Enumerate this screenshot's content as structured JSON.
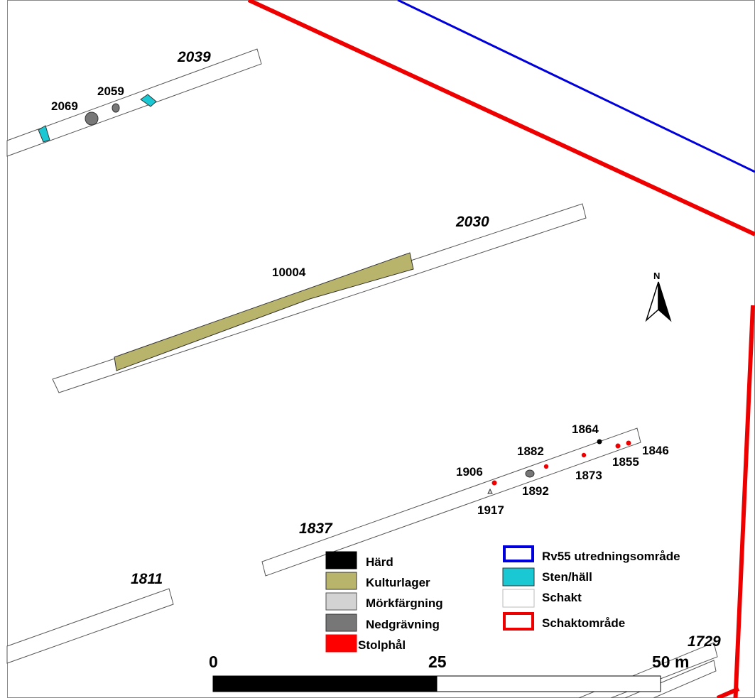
{
  "colors": {
    "hard": "#000000",
    "kulturlager": "#b9b46c",
    "morkfargning": "#d3d3d3",
    "nedgravning": "#777777",
    "stolphal": "#ff0000",
    "utredningsomrade": "#0000dd",
    "sten_hall": "#19c8d2",
    "schakt": "#ffffff",
    "schaktomrade": "#ee0000"
  },
  "trenches": {
    "t2039": "2039",
    "t2030": "2030",
    "t1837": "1837",
    "t1811": "1811",
    "t1729": "1729"
  },
  "features": {
    "f2069": "2069",
    "f2059": "2059",
    "f10004": "10004",
    "f1864": "1864",
    "f1882": "1882",
    "f1846": "1846",
    "f1855": "1855",
    "f1873": "1873",
    "f1906": "1906",
    "f1892": "1892",
    "f1917": "1917"
  },
  "north_arrow": {
    "label": "N",
    "icon": "north-arrow-icon"
  },
  "legend": {
    "left": [
      {
        "label": "Härd",
        "color": "#000000"
      },
      {
        "label": "Kulturlager",
        "color": "#b9b46c"
      },
      {
        "label": "Mörkfärgning",
        "color": "#d3d3d3"
      },
      {
        "label": "Nedgrävning",
        "color": "#777777"
      },
      {
        "label": "Stolphål",
        "color": "#ff0000"
      }
    ],
    "right": [
      {
        "label": "Rv55 utredningsområde",
        "color": "#0000dd",
        "style": "outline"
      },
      {
        "label": "Sten/häll",
        "color": "#19c8d2",
        "style": "fill"
      },
      {
        "label": "Schakt",
        "color": "#ffffff",
        "style": "fill"
      },
      {
        "label": "Schaktområde",
        "color": "#ee0000",
        "style": "outline"
      }
    ]
  },
  "scale_bar": {
    "label_start": "0",
    "label_mid": "25",
    "label_end": "50 m"
  }
}
